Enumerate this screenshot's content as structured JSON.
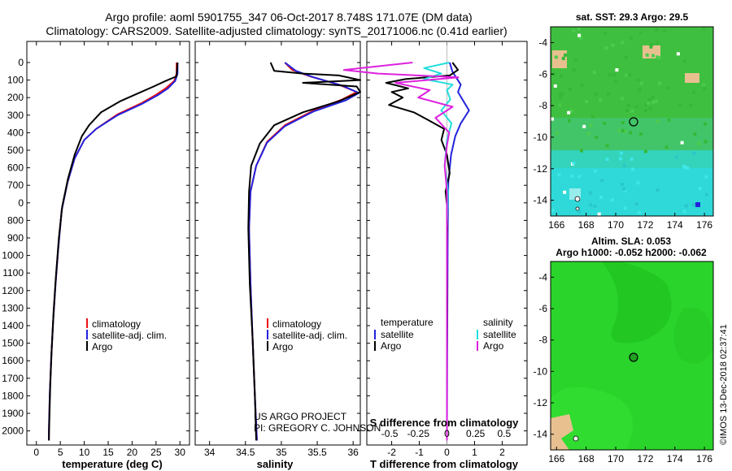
{
  "header": {
    "title_line1": "Argo profile: aoml 5901755_347 06-Oct-2017 8.748S 171.07E (DM data)",
    "title_line2": "Climatology: CARS2009. Satellite-adjusted climatology: synTS_20171006.nc (0.41d earlier)"
  },
  "credits": {
    "project": "US ARGO PROJECT",
    "pi": "PI: GREGORY C. JOHNSON",
    "imos": "©IMOS 13-Dec-2018 02:37:41"
  },
  "colors": {
    "climatology": "#ee1111",
    "satellite": "#2222dd",
    "argo": "#000000",
    "sal_satellite": "#22dddd",
    "sal_argo": "#dd22dd",
    "map_green": "#3fbf3f",
    "map_cyan": "#2fd9d9",
    "map_land": "#e8c090",
    "map_sla_green": "#2ad42a"
  },
  "depth_ticks": [
    "0",
    "100",
    "200",
    "300",
    "400",
    "500",
    "600",
    "700",
    "0",
    "800",
    "900",
    "1000",
    "1100",
    "1200",
    "1300",
    "1400",
    "1500",
    "1600",
    "1700",
    "1800",
    "1900",
    "2000"
  ],
  "chart_data": [
    {
      "id": "temperature",
      "type": "line",
      "xlabel": "temperature (deg C)",
      "ylabel": "depth",
      "xlim": [
        -2,
        32
      ],
      "ylim": [
        2070,
        0
      ],
      "xticks": [
        0,
        5,
        10,
        15,
        20,
        25,
        30
      ],
      "xtick_labels": [
        "0",
        "5",
        "10",
        "15",
        "20",
        "25",
        "30"
      ],
      "legend": {
        "position": "bottom-right",
        "entries": [
          "climatology",
          "satellite-adj. clim.",
          "Argo"
        ]
      },
      "series": [
        {
          "name": "climatology",
          "color_key": "climatology",
          "points": [
            [
              29.3,
              0
            ],
            [
              29.3,
              60
            ],
            [
              28.8,
              100
            ],
            [
              27,
              140
            ],
            [
              25,
              175
            ],
            [
              22,
              220
            ],
            [
              17,
              280
            ],
            [
              12.5,
              360
            ],
            [
              10,
              420
            ],
            [
              8,
              520
            ],
            [
              6.5,
              650
            ],
            [
              5.3,
              800
            ],
            [
              4.6,
              1000
            ],
            [
              4,
              1200
            ],
            [
              3.5,
              1400
            ],
            [
              3.1,
              1600
            ],
            [
              2.8,
              1800
            ],
            [
              2.6,
              2000
            ],
            [
              2.6,
              2050
            ]
          ]
        },
        {
          "name": "satellite-adj. clim.",
          "color_key": "satellite",
          "points": [
            [
              29.5,
              0
            ],
            [
              29.5,
              60
            ],
            [
              29,
              100
            ],
            [
              27.5,
              140
            ],
            [
              25.5,
              175
            ],
            [
              22,
              225
            ],
            [
              17,
              285
            ],
            [
              12.5,
              360
            ],
            [
              10,
              420
            ],
            [
              8,
              520
            ],
            [
              6.5,
              650
            ],
            [
              5.3,
              800
            ],
            [
              4.6,
              1000
            ],
            [
              4,
              1200
            ],
            [
              3.5,
              1400
            ],
            [
              3.1,
              1600
            ],
            [
              2.8,
              1800
            ],
            [
              2.6,
              2000
            ],
            [
              2.6,
              2050
            ]
          ]
        },
        {
          "name": "Argo",
          "color_key": "argo",
          "points": [
            [
              29.5,
              0
            ],
            [
              29.3,
              75
            ],
            [
              27,
              100
            ],
            [
              24.5,
              130
            ],
            [
              21,
              170
            ],
            [
              17.5,
              210
            ],
            [
              13.5,
              270
            ],
            [
              11,
              340
            ],
            [
              9.5,
              400
            ],
            [
              8,
              500
            ],
            [
              6.6,
              630
            ],
            [
              5.4,
              780
            ],
            [
              4.7,
              950
            ],
            [
              4.1,
              1150
            ],
            [
              3.6,
              1350
            ],
            [
              3.2,
              1550
            ],
            [
              2.9,
              1750
            ],
            [
              2.7,
              1950
            ],
            [
              2.6,
              2050
            ]
          ]
        }
      ]
    },
    {
      "id": "salinity",
      "type": "line",
      "xlabel": "salinity",
      "ylabel": "depth",
      "xlim": [
        33.8,
        36.1
      ],
      "ylim": [
        2070,
        0
      ],
      "xticks": [
        34,
        34.5,
        35,
        35.5,
        36
      ],
      "xtick_labels": [
        "34",
        "34.5",
        "35",
        "35.5",
        "36"
      ],
      "legend": {
        "position": "bottom-right",
        "entries": [
          "climatology",
          "satellite-adj. clim.",
          "Argo"
        ]
      },
      "series": [
        {
          "name": "climatology",
          "color_key": "climatology",
          "points": [
            [
              35.05,
              0
            ],
            [
              35.15,
              40
            ],
            [
              35.4,
              75
            ],
            [
              35.8,
              120
            ],
            [
              36.05,
              160
            ],
            [
              35.85,
              200
            ],
            [
              35.45,
              260
            ],
            [
              35.05,
              340
            ],
            [
              34.8,
              430
            ],
            [
              34.65,
              560
            ],
            [
              34.57,
              700
            ],
            [
              34.55,
              900
            ],
            [
              34.57,
              1200
            ],
            [
              34.6,
              1500
            ],
            [
              34.63,
              1800
            ],
            [
              34.66,
              2050
            ]
          ]
        },
        {
          "name": "satellite-adj. clim.",
          "color_key": "satellite",
          "points": [
            [
              35.05,
              0
            ],
            [
              35.2,
              45
            ],
            [
              35.45,
              80
            ],
            [
              35.85,
              125
            ],
            [
              36.08,
              165
            ],
            [
              35.9,
              205
            ],
            [
              35.45,
              265
            ],
            [
              35.05,
              345
            ],
            [
              34.8,
              435
            ],
            [
              34.65,
              560
            ],
            [
              34.57,
              700
            ],
            [
              34.55,
              900
            ],
            [
              34.57,
              1200
            ],
            [
              34.6,
              1500
            ],
            [
              34.63,
              1800
            ],
            [
              34.66,
              2050
            ]
          ]
        },
        {
          "name": "Argo",
          "color_key": "argo",
          "points": [
            [
              34.85,
              0
            ],
            [
              34.9,
              45
            ],
            [
              35.3,
              60
            ],
            [
              35.8,
              70
            ],
            [
              36.1,
              95
            ],
            [
              35.3,
              110
            ],
            [
              36.05,
              130
            ],
            [
              36.1,
              160
            ],
            [
              35.8,
              210
            ],
            [
              35.3,
              270
            ],
            [
              34.9,
              340
            ],
            [
              34.7,
              440
            ],
            [
              34.58,
              560
            ],
            [
              34.55,
              700
            ],
            [
              34.54,
              900
            ],
            [
              34.56,
              1200
            ],
            [
              34.6,
              1500
            ],
            [
              34.63,
              1800
            ],
            [
              34.65,
              2050
            ]
          ]
        }
      ]
    },
    {
      "id": "difference",
      "type": "line",
      "xlabel": "T difference from climatology",
      "xlabel_top": "S difference from climatology",
      "ylabel": "depth",
      "xlim": [
        -2.9,
        2.9
      ],
      "ylim": [
        2070,
        0
      ],
      "xticks": [
        -2,
        -1,
        0,
        1,
        2
      ],
      "xtick_labels": [
        "-2",
        "-1",
        "0",
        "1",
        "2"
      ],
      "xticks_top": [
        -0.5,
        -0.25,
        0,
        0.25,
        0.5
      ],
      "xtick_labels_top": [
        "-0.5",
        "-0.25",
        "0",
        "0.25",
        "0.5"
      ],
      "legend": {
        "position": "bottom",
        "temperature_title": "temperature",
        "salinity_title": "salinity",
        "entries": [
          "satellite",
          "Argo",
          "satellite",
          "Argo"
        ]
      },
      "series": [
        {
          "name": "T satellite",
          "color_key": "satellite",
          "points": [
            [
              0.1,
              0
            ],
            [
              0.2,
              50
            ],
            [
              0.5,
              120
            ],
            [
              0.4,
              160
            ],
            [
              0.6,
              210
            ],
            [
              0.8,
              260
            ],
            [
              0.5,
              330
            ],
            [
              0.3,
              400
            ],
            [
              0.15,
              500
            ],
            [
              0.05,
              650
            ],
            [
              0.03,
              900
            ],
            [
              0.02,
              1200
            ],
            [
              0.01,
              1600
            ],
            [
              0,
              2050
            ]
          ]
        },
        {
          "name": "T Argo",
          "color_key": "argo",
          "points": [
            [
              0.2,
              0
            ],
            [
              0.4,
              40
            ],
            [
              0.1,
              70
            ],
            [
              -1.5,
              90
            ],
            [
              -2.2,
              110
            ],
            [
              -1.4,
              140
            ],
            [
              -2,
              160
            ],
            [
              -1.6,
              190
            ],
            [
              -2.1,
              230
            ],
            [
              -1.2,
              270
            ],
            [
              -0.7,
              310
            ],
            [
              -0.1,
              360
            ],
            [
              -0.2,
              420
            ],
            [
              0,
              500
            ],
            [
              0.1,
              600
            ],
            [
              -0.05,
              700
            ],
            [
              0.02,
              800
            ],
            [
              0,
              1000
            ],
            [
              0.01,
              1300
            ],
            [
              0,
              1600
            ],
            [
              0,
              2050
            ]
          ]
        },
        {
          "name": "S satellite",
          "color_key": "sal_satellite",
          "points": [
            [
              0.02,
              0
            ],
            [
              -0.2,
              30
            ],
            [
              -0.05,
              60
            ],
            [
              -0.2,
              90
            ],
            [
              0.05,
              120
            ],
            [
              0,
              150
            ],
            [
              0.03,
              200
            ],
            [
              -0.05,
              260
            ],
            [
              0.04,
              330
            ],
            [
              0,
              420
            ],
            [
              -0.02,
              560
            ],
            [
              0.01,
              700
            ],
            [
              0,
              900
            ],
            [
              0,
              1300
            ],
            [
              0,
              1800
            ],
            [
              0,
              2050
            ]
          ]
        },
        {
          "name": "S Argo",
          "color_key": "sal_argo",
          "points": [
            [
              -0.3,
              0
            ],
            [
              -0.9,
              40
            ],
            [
              -0.6,
              60
            ],
            [
              0.1,
              80
            ],
            [
              -0.45,
              110
            ],
            [
              -0.15,
              150
            ],
            [
              -0.25,
              190
            ],
            [
              0.05,
              240
            ],
            [
              -0.1,
              300
            ],
            [
              0.02,
              380
            ],
            [
              0,
              450
            ],
            [
              -0.02,
              560
            ],
            [
              0,
              700
            ],
            [
              0,
              1000
            ],
            [
              0,
              1500
            ],
            [
              0,
              2050
            ]
          ]
        }
      ]
    }
  ],
  "map_sst": {
    "title": "sat. SST: 29.3 Argo: 29.5",
    "xticks": [
      "166",
      "168",
      "170",
      "172",
      "174",
      "176"
    ],
    "yticks": [
      "-4",
      "-6",
      "-8",
      "-10",
      "-12",
      "-14"
    ],
    "lon_range": [
      165.6,
      176.6
    ],
    "lat_range": [
      -3,
      -15
    ],
    "float_position": [
      171.07,
      -8.748
    ]
  },
  "map_sla": {
    "title_line1": "Altim. SLA: 0.053",
    "title_line2": "Argo h1000: -0.052 h2000: -0.062",
    "xticks": [
      "166",
      "168",
      "170",
      "172",
      "174",
      "176"
    ],
    "yticks": [
      "-4",
      "-6",
      "-8",
      "-10",
      "-12",
      "-14"
    ],
    "lon_range": [
      165.6,
      176.6
    ],
    "lat_range": [
      -3,
      -15
    ],
    "float_position": [
      171.07,
      -8.748
    ]
  }
}
